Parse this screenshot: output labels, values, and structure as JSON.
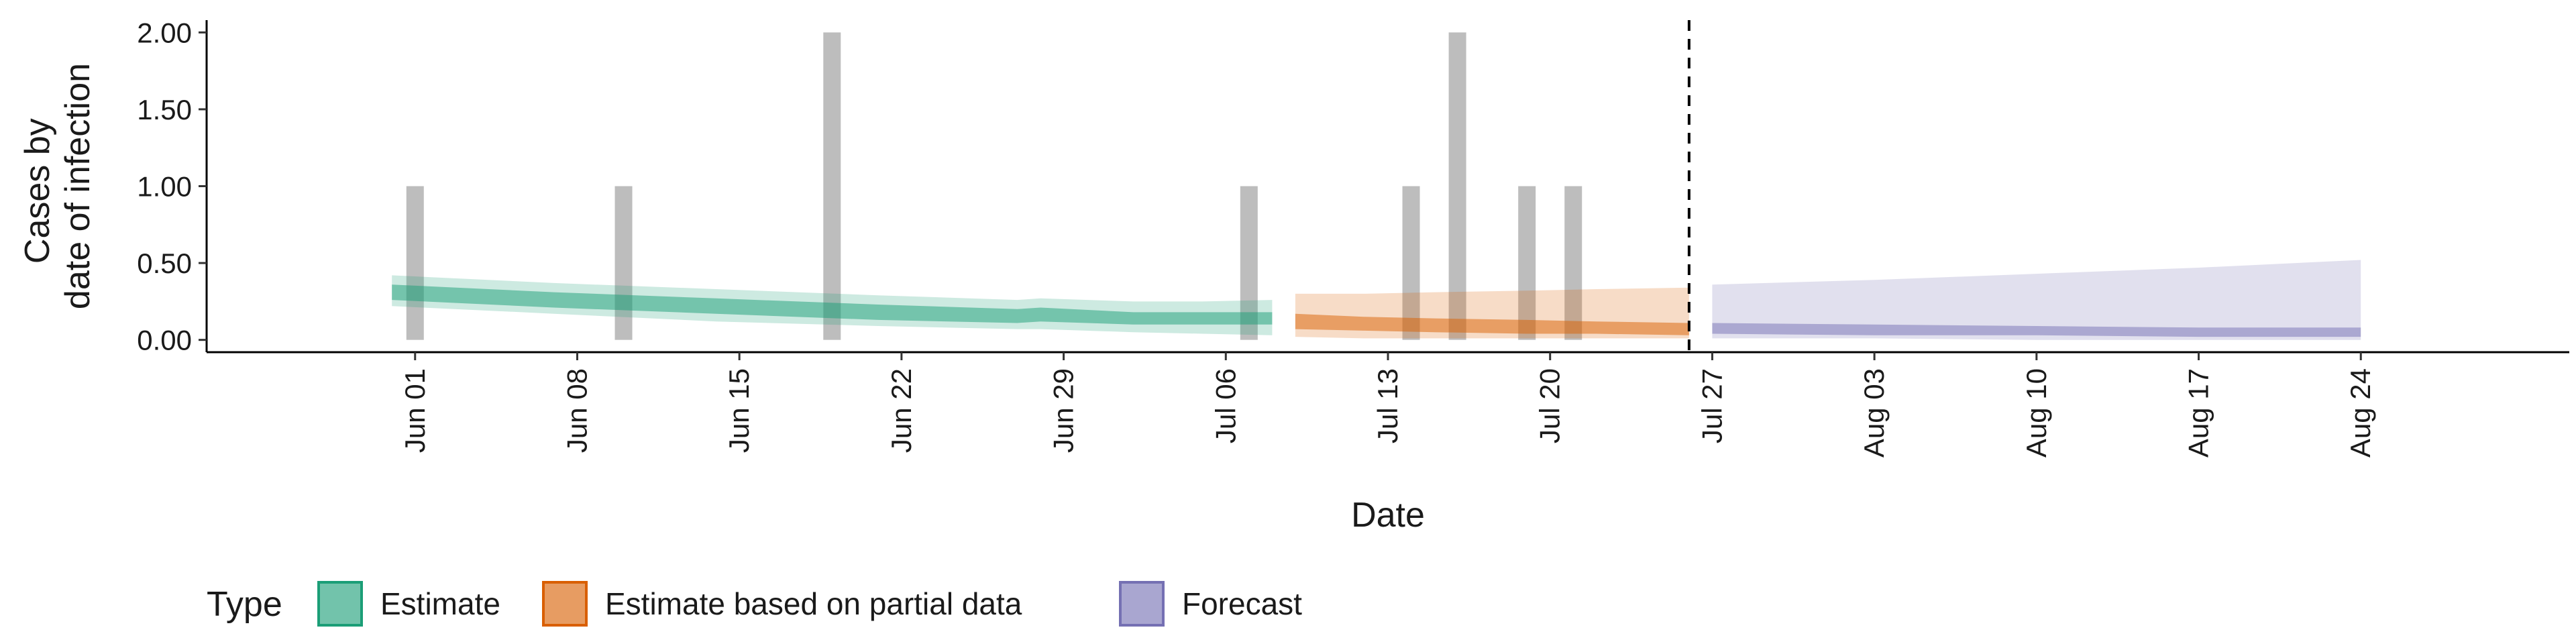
{
  "chart_data": {
    "type": "area",
    "title": "",
    "xlabel": "Date",
    "ylabel": [
      "Cases by",
      "date of infection"
    ],
    "xlim": [
      "2020-05-23",
      "2020-09-02"
    ],
    "ylim": [
      -0.08,
      2.08
    ],
    "y_ticks": [
      0,
      0.5,
      1,
      1.5,
      2
    ],
    "y_tick_labels": [
      "0.00",
      "0.50",
      "1.00",
      "1.50",
      "2.00"
    ],
    "x_ticks": [
      "2020-06-01",
      "2020-06-08",
      "2020-06-15",
      "2020-06-22",
      "2020-06-29",
      "2020-07-06",
      "2020-07-13",
      "2020-07-20",
      "2020-07-27",
      "2020-08-03",
      "2020-08-10",
      "2020-08-17",
      "2020-08-24"
    ],
    "x_tick_labels": [
      "Jun 01",
      "Jun 08",
      "Jun 15",
      "Jun 22",
      "Jun 29",
      "Jul 06",
      "Jul 13",
      "Jul 20",
      "Jul 27",
      "Aug 03",
      "Aug 10",
      "Aug 17",
      "Aug 24"
    ],
    "grid": false,
    "forecast_date": "2020-07-26",
    "reported_cases": {
      "color": "#bdbdbd",
      "dates": [
        "2020-06-01",
        "2020-06-10",
        "2020-06-19",
        "2020-07-07",
        "2020-07-14",
        "2020-07-16",
        "2020-07-19",
        "2020-07-21"
      ],
      "values": [
        1,
        1,
        2,
        1,
        1,
        2,
        1,
        1
      ]
    },
    "series": [
      {
        "name": "Estimate",
        "color": "#1b9e77",
        "dates": [
          "2020-05-31",
          "2020-06-07",
          "2020-06-14",
          "2020-06-21",
          "2020-06-27",
          "2020-06-28",
          "2020-07-02",
          "2020-07-05",
          "2020-07-08"
        ],
        "median": [
          0.32,
          0.27,
          0.22,
          0.18,
          0.15,
          0.16,
          0.14,
          0.14,
          0.14
        ],
        "inner_lower": [
          0.26,
          0.21,
          0.17,
          0.13,
          0.11,
          0.12,
          0.1,
          0.1,
          0.1
        ],
        "inner_upper": [
          0.36,
          0.31,
          0.27,
          0.23,
          0.2,
          0.21,
          0.18,
          0.18,
          0.18
        ],
        "outer_lower": [
          0.22,
          0.17,
          0.12,
          0.09,
          0.07,
          0.07,
          0.05,
          0.04,
          0.03
        ],
        "outer_upper": [
          0.42,
          0.37,
          0.33,
          0.29,
          0.26,
          0.27,
          0.25,
          0.25,
          0.26
        ]
      },
      {
        "name": "Estimate based on partial data",
        "color": "#d95f02",
        "dates": [
          "2020-07-09",
          "2020-07-12",
          "2020-07-15",
          "2020-07-19",
          "2020-07-22",
          "2020-07-26"
        ],
        "median": [
          0.12,
          0.1,
          0.09,
          0.09,
          0.08,
          0.07
        ],
        "inner_lower": [
          0.07,
          0.06,
          0.05,
          0.04,
          0.04,
          0.03
        ],
        "inner_upper": [
          0.17,
          0.15,
          0.14,
          0.13,
          0.12,
          0.11
        ],
        "outer_lower": [
          0.02,
          0.01,
          0.01,
          0.01,
          0.01,
          0.01
        ],
        "outer_upper": [
          0.3,
          0.3,
          0.31,
          0.32,
          0.33,
          0.34
        ]
      },
      {
        "name": "Forecast",
        "color": "#7570b3",
        "dates": [
          "2020-07-27",
          "2020-08-03",
          "2020-08-10",
          "2020-08-17",
          "2020-08-24"
        ],
        "median": [
          0.08,
          0.07,
          0.06,
          0.05,
          0.05
        ],
        "inner_lower": [
          0.04,
          0.03,
          0.03,
          0.02,
          0.02
        ],
        "inner_upper": [
          0.11,
          0.1,
          0.09,
          0.08,
          0.08
        ],
        "outer_lower": [
          0.01,
          0.01,
          0.0,
          0.0,
          0.0
        ],
        "outer_upper": [
          0.36,
          0.39,
          0.43,
          0.47,
          0.52
        ]
      }
    ],
    "legend": {
      "title": "Type",
      "position": "bottom-left",
      "entries": [
        "Estimate",
        "Estimate based on partial data",
        "Forecast"
      ]
    }
  }
}
